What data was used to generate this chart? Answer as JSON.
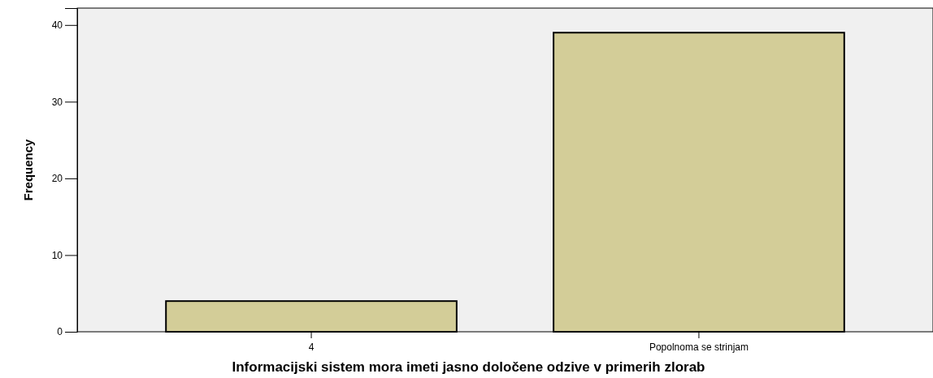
{
  "chart_data": {
    "type": "bar",
    "xlabel": "Informacijski sistem mora imeti jasno določene odzive v primerih zlorab",
    "ylabel": "Frequency",
    "categories": [
      "4",
      "Popolnoma se strinjam"
    ],
    "values": [
      4,
      39
    ],
    "color": "#d3cd98",
    "ylim": [
      0,
      42.2
    ],
    "yticks": [
      0,
      10,
      20,
      30,
      40
    ],
    "grid": false
  }
}
